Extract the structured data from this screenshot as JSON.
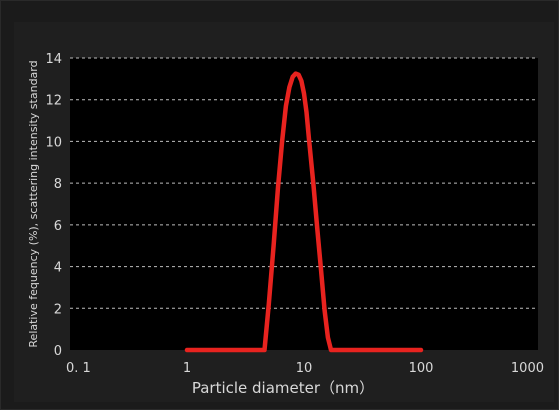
{
  "chart_data": {
    "type": "line",
    "xlabel": "Particle diameter（nm）",
    "ylabel": "Relative fequency (%), scattering intensity standard",
    "x_scale": "log",
    "xlim": [
      0.1,
      1000
    ],
    "ylim": [
      0,
      14
    ],
    "x_ticks": [
      0.1,
      1,
      10,
      100,
      1000
    ],
    "x_tick_labels": [
      "0. 1",
      "1",
      "10",
      "100",
      "1000"
    ],
    "y_ticks": [
      0,
      2,
      4,
      6,
      8,
      10,
      12,
      14
    ],
    "y_tick_labels": [
      "0",
      "2",
      "4",
      "6",
      "8",
      "10",
      "12",
      "14"
    ],
    "grid": "horizontal dashed",
    "series": [
      {
        "color": "#e8231f",
        "x": [
          1,
          2,
          3,
          4,
          4.6,
          5,
          5.5,
          6,
          6.5,
          7,
          7.5,
          8,
          8.5,
          9,
          9.5,
          10,
          10.5,
          11,
          12,
          13,
          14,
          15,
          16,
          17,
          20,
          30,
          50,
          100
        ],
        "y": [
          0,
          0,
          0,
          0,
          0,
          2.2,
          5.0,
          7.8,
          10.0,
          11.7,
          12.6,
          13.1,
          13.25,
          13.2,
          12.9,
          12.3,
          11.4,
          10.2,
          8.0,
          5.8,
          3.8,
          1.9,
          0.6,
          0,
          0,
          0,
          0,
          0
        ]
      }
    ]
  }
}
